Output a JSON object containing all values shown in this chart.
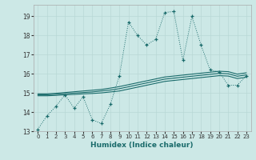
{
  "xlabel": "Humidex (Indice chaleur)",
  "bg_color": "#cce8e6",
  "grid_color": "#b8d8d5",
  "line_color": "#1a6b6b",
  "xlim": [
    -0.5,
    23.5
  ],
  "ylim": [
    13,
    19.6
  ],
  "yticks": [
    13,
    14,
    15,
    16,
    17,
    18,
    19
  ],
  "xticks": [
    0,
    1,
    2,
    3,
    4,
    5,
    6,
    7,
    8,
    9,
    10,
    11,
    12,
    13,
    14,
    15,
    16,
    17,
    18,
    19,
    20,
    21,
    22,
    23
  ],
  "series_volatile": [
    13.1,
    13.8,
    14.3,
    14.9,
    14.2,
    14.8,
    13.6,
    13.4,
    14.4,
    15.9,
    18.7,
    18.0,
    17.5,
    17.8,
    19.2,
    19.25,
    16.7,
    19.0,
    17.5,
    16.2,
    16.1,
    15.4,
    15.4,
    15.9
  ],
  "series_smooth1": [
    14.85,
    14.85,
    14.87,
    14.9,
    14.92,
    14.95,
    14.97,
    15.0,
    15.05,
    15.1,
    15.2,
    15.3,
    15.4,
    15.5,
    15.6,
    15.65,
    15.7,
    15.75,
    15.8,
    15.85,
    15.9,
    15.88,
    15.75,
    15.82
  ],
  "series_smooth2": [
    14.9,
    14.9,
    14.93,
    14.96,
    14.99,
    15.02,
    15.05,
    15.1,
    15.15,
    15.22,
    15.32,
    15.42,
    15.52,
    15.62,
    15.72,
    15.77,
    15.82,
    15.87,
    15.92,
    15.97,
    16.02,
    16.0,
    15.87,
    15.94
  ],
  "series_smooth3": [
    14.95,
    14.95,
    14.98,
    15.02,
    15.06,
    15.1,
    15.14,
    15.18,
    15.25,
    15.33,
    15.43,
    15.53,
    15.63,
    15.73,
    15.83,
    15.88,
    15.93,
    15.98,
    16.03,
    16.08,
    16.13,
    16.11,
    15.98,
    16.05
  ]
}
